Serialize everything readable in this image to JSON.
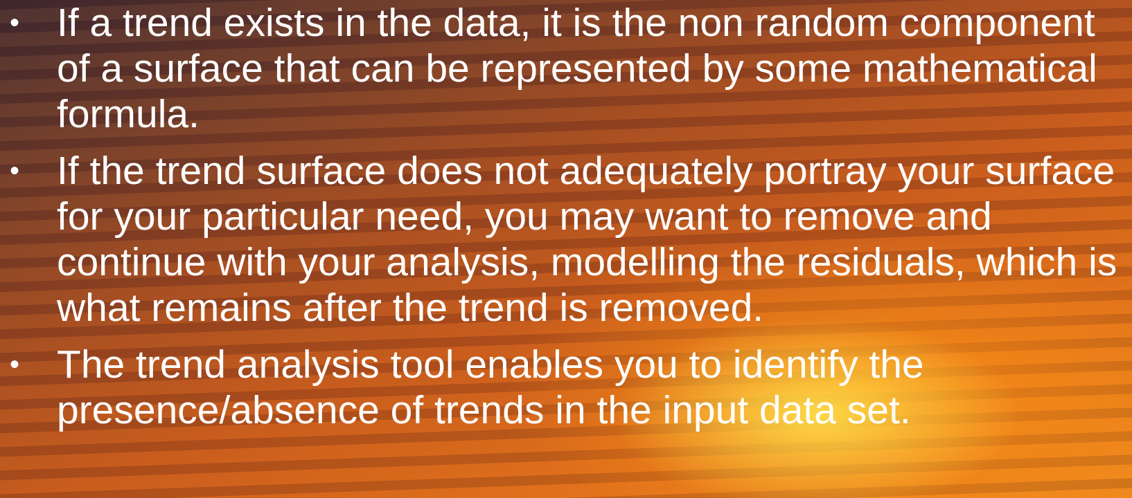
{
  "bullets": [
    "If a trend exists in the data, it is the non random component of a surface that can be represented by some mathematical formula.",
    "If the trend surface does not adequately portray your surface for your particular need, you may want to remove and continue with your analysis, modelling the residuals, which is what remains after the trend is removed.",
    "The trend analysis tool enables you to identify the presence/absence of trends in the input data set."
  ]
}
